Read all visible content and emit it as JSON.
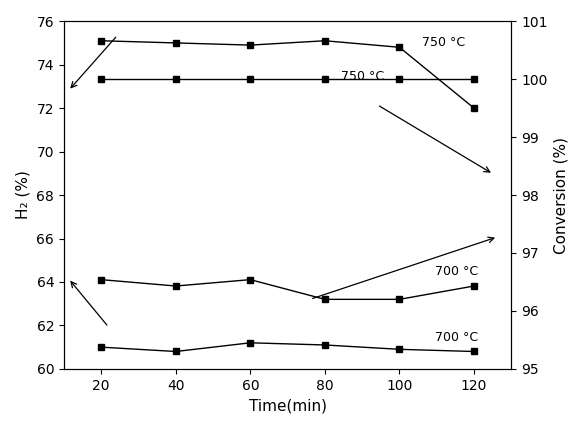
{
  "chart_data": {
    "type": "line",
    "x_label": "Time(min)",
    "y_label": "H₂ (%)",
    "y2_label": "Conversion (%)",
    "x": [
      20,
      40,
      60,
      80,
      100,
      120
    ],
    "xlim": [
      10,
      130
    ],
    "xticks": [
      20,
      40,
      60,
      80,
      100,
      120
    ],
    "ylim": [
      60,
      76
    ],
    "yticks": [
      60,
      62,
      64,
      66,
      68,
      70,
      72,
      74,
      76
    ],
    "y2lim": [
      95,
      101
    ],
    "y2ticks": [
      95,
      96,
      97,
      98,
      99,
      100,
      101
    ],
    "grid": false,
    "series": [
      {
        "name": "750 °C",
        "color": "#000000",
        "marker": "square",
        "line_style": "solid",
        "axis": "y",
        "values": [
          75.1,
          75.0,
          74.9,
          75.1,
          74.8,
          72.0
        ]
      },
      {
        "name": "750 °C",
        "color": "#000000",
        "marker": "square",
        "line_style": "solid",
        "axis": "y2",
        "values": [
          100.0,
          100.0,
          100.0,
          100.0,
          100.0,
          100.0
        ]
      },
      {
        "name": "700 °C",
        "color": "#000000",
        "marker": "square",
        "line_style": "solid",
        "axis": "y2",
        "values": [
          96.54,
          96.43,
          96.54,
          96.2,
          96.2,
          96.43
        ]
      },
      {
        "name": "700 °C",
        "color": "#000000",
        "marker": "square",
        "line_style": "solid",
        "axis": "y",
        "values": [
          61.0,
          60.8,
          61.2,
          61.1,
          60.9,
          60.8
        ]
      }
    ]
  }
}
